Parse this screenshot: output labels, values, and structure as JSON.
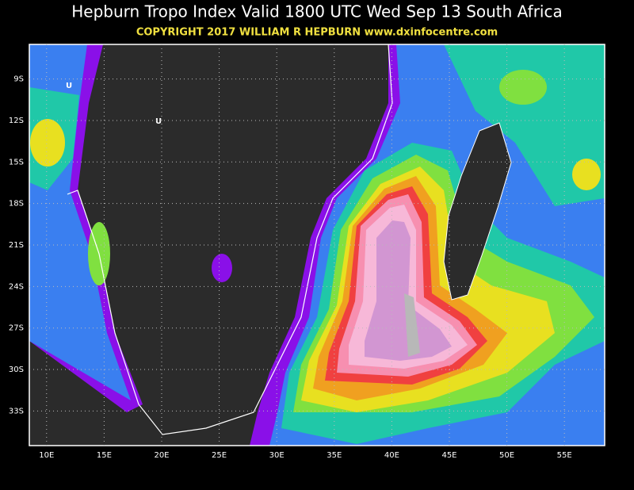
{
  "map": {
    "title": "Hepburn Tropo Index Valid 1800 UTC Wed Sep 13 South Africa",
    "subtitle": "COPYRIGHT 2017  WILLIAM R HEPBURN  www.dxinfocentre.com",
    "lonlim": [
      8.5,
      58.5
    ],
    "latlim": [
      -35.5,
      -6.5
    ],
    "lon_ticks": [
      {
        "value": 10,
        "label": "10E"
      },
      {
        "value": 15,
        "label": "15E"
      },
      {
        "value": 20,
        "label": "20E"
      },
      {
        "value": 25,
        "label": "25E"
      },
      {
        "value": 30,
        "label": "30E"
      },
      {
        "value": 35,
        "label": "35E"
      },
      {
        "value": 40,
        "label": "40E"
      },
      {
        "value": 45,
        "label": "45E"
      },
      {
        "value": 50,
        "label": "50E"
      },
      {
        "value": 55,
        "label": "55E"
      }
    ],
    "lat_ticks": [
      {
        "value": -9,
        "label": "9S"
      },
      {
        "value": -12,
        "label": "12S"
      },
      {
        "value": -15,
        "label": "15S"
      },
      {
        "value": -18,
        "label": "18S"
      },
      {
        "value": -21,
        "label": "21S"
      },
      {
        "value": -24,
        "label": "24S"
      },
      {
        "value": -27,
        "label": "27S"
      },
      {
        "value": -30,
        "label": "30S"
      },
      {
        "value": -33,
        "label": "33S"
      }
    ],
    "markers": [
      "U",
      "U"
    ]
  }
}
